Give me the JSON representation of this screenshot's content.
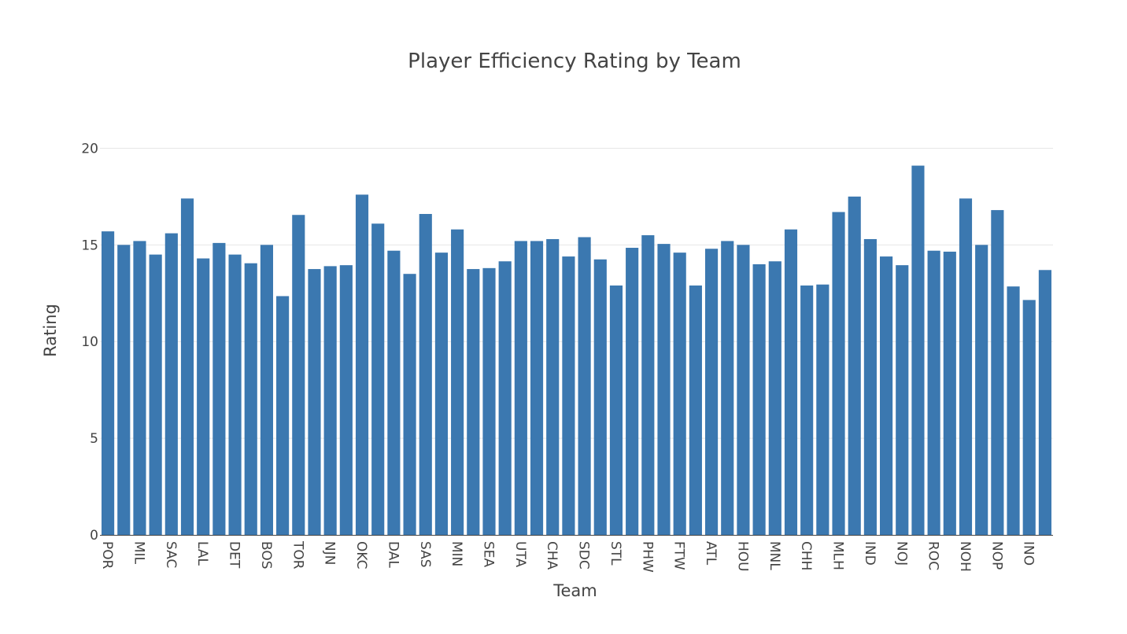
{
  "chart_data": {
    "type": "bar",
    "title": "Player Efficiency Rating by Team",
    "xlabel": "Team",
    "ylabel": "Rating",
    "ylim": [
      0,
      22.5
    ],
    "yticks": [
      0,
      5,
      10,
      15,
      20
    ],
    "grid": true,
    "bar_color": "#3b78b0",
    "categories": [
      "POR",
      "",
      "MIL",
      "",
      "SAC",
      "",
      "LAL",
      "",
      "DET",
      "",
      "BOS",
      "",
      "TOR",
      "",
      "NJN",
      "",
      "OKC",
      "",
      "DAL",
      "",
      "SAS",
      "",
      "MIN",
      "",
      "SEA",
      "",
      "UTA",
      "",
      "CHA",
      "",
      "SDC",
      "",
      "STL",
      "",
      "PHW",
      "",
      "FTW",
      "",
      "ATL",
      "",
      "HOU",
      "",
      "MNL",
      "",
      "CHH",
      "",
      "MLH",
      "",
      "IND",
      "",
      "NOJ",
      "",
      "ROC",
      "",
      "NOH",
      "",
      "NOP",
      "",
      "INO",
      ""
    ],
    "values": [
      15.7,
      15.0,
      15.2,
      14.5,
      15.6,
      17.4,
      14.3,
      15.1,
      14.5,
      14.05,
      15.0,
      12.35,
      16.55,
      13.75,
      13.9,
      13.95,
      17.6,
      16.1,
      14.7,
      13.5,
      16.6,
      14.6,
      15.8,
      13.75,
      13.8,
      14.15,
      15.2,
      15.2,
      15.3,
      14.4,
      15.4,
      14.25,
      12.9,
      14.85,
      15.5,
      15.05,
      14.6,
      12.9,
      14.8,
      15.2,
      15.0,
      14.0,
      14.15,
      15.8,
      12.9,
      12.95,
      16.7,
      17.5,
      15.3,
      14.4,
      13.95,
      19.1,
      14.7,
      14.65,
      17.4,
      15.0,
      16.8,
      12.85,
      12.15,
      13.7
    ]
  }
}
